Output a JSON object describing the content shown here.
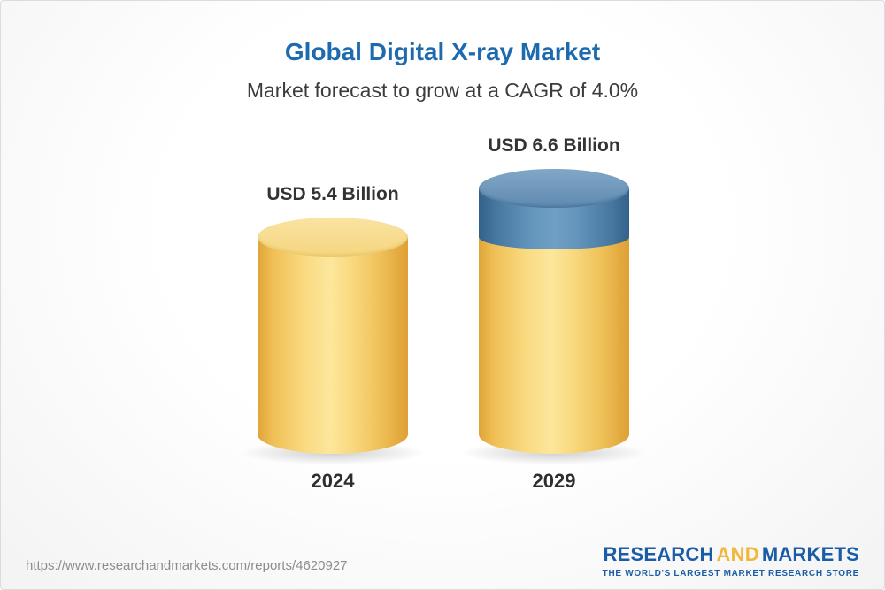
{
  "title": "Global Digital X-ray Market",
  "subtitle": "Market forecast to grow at a CAGR of 4.0%",
  "chart_data": {
    "type": "bar",
    "title": "Global Digital X-ray Market",
    "subtitle": "Market forecast to grow at a CAGR of 4.0%",
    "categories": [
      "2024",
      "2029"
    ],
    "values": [
      5.4,
      6.6
    ],
    "value_labels": [
      "USD 5.4 Billion",
      "USD 6.6 Billion"
    ],
    "unit": "USD Billion",
    "cagr_pct": 4.0,
    "ylim": [
      0,
      6.6
    ],
    "grid": false,
    "legend": "none",
    "bar_style": "3d-cylinder",
    "colors": {
      "base_segment": "#F6CE65",
      "growth_segment": "#4E81AE",
      "title_text": "#1E6AAE"
    }
  },
  "footer": {
    "url": "https://www.researchandmarkets.com/reports/4620927",
    "logo_word1": "RESEARCH",
    "logo_word2": "AND",
    "logo_word3": "MARKETS",
    "logo_tagline": "THE WORLD'S LARGEST MARKET RESEARCH STORE"
  }
}
